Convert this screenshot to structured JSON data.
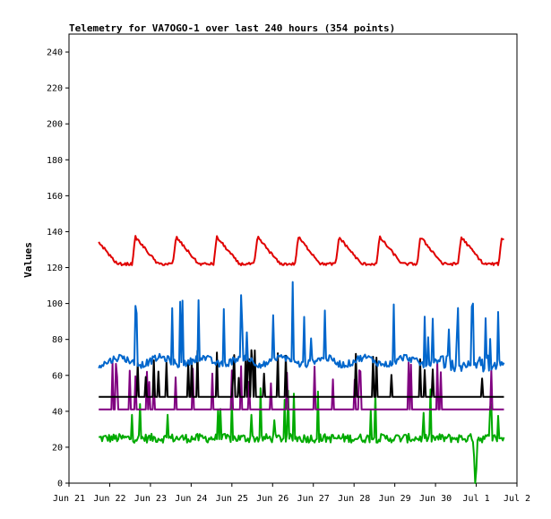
{
  "chart_data": {
    "type": "line",
    "title": "Telemetry for VA7OGO-1 over last 240 hours (354 points)",
    "xlabel": "",
    "ylabel": "Values",
    "ylim": [
      0,
      250
    ],
    "yticks": [
      0,
      20,
      40,
      60,
      80,
      100,
      120,
      140,
      160,
      180,
      200,
      220,
      240
    ],
    "xlim": [
      0,
      11
    ],
    "xticks": [
      {
        "label": "Jun 21",
        "x": 0
      },
      {
        "label": "Jun 22",
        "x": 1
      },
      {
        "label": "Jun 23",
        "x": 2
      },
      {
        "label": "Jun 24",
        "x": 3
      },
      {
        "label": "Jun 25",
        "x": 4
      },
      {
        "label": "Jun 26",
        "x": 5
      },
      {
        "label": "Jun 27",
        "x": 6
      },
      {
        "label": "Jun 28",
        "x": 7
      },
      {
        "label": "Jun 29",
        "x": 8
      },
      {
        "label": "Jun 30",
        "x": 9
      },
      {
        "label": "Jul 1",
        "x": 10
      },
      {
        "label": "Jul 2",
        "x": 11
      }
    ],
    "grid": false,
    "x_range": [
      0.73,
      10.68
    ],
    "series": [
      {
        "key": "red",
        "color": "#e00000",
        "pattern": "daily cycle: peak ~137 near midday, trough ~122",
        "approx_range": [
          122,
          139
        ]
      },
      {
        "key": "blue",
        "color": "#0066cc",
        "pattern": "baseline ~68 with frequent spikes to 85-112",
        "approx_range": [
          59,
          112
        ]
      },
      {
        "key": "black",
        "color": "#000000",
        "pattern": "flat ~48 with spikes to 60-75",
        "approx_range": [
          48,
          75
        ]
      },
      {
        "key": "purple",
        "color": "#800080",
        "pattern": "flat ~41 with spikes to 60-68",
        "approx_range": [
          40,
          68
        ]
      },
      {
        "key": "green",
        "color": "#00aa00",
        "pattern": "noisy ~25 with spikes to 48-60 and dip to 0 near Jul 1",
        "approx_range": [
          0,
          60
        ]
      }
    ]
  }
}
